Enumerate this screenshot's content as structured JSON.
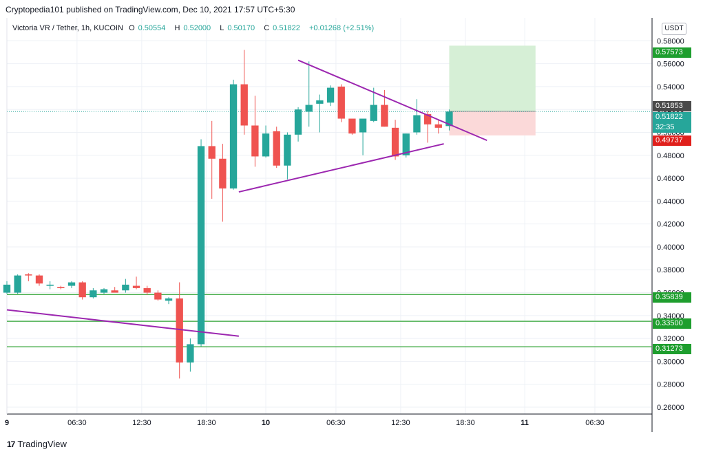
{
  "header": {
    "publisher": "Cryptopedia101",
    "published_on": "published on TradingView.com, Dec 10, 2021 17:57 UTC+5:30"
  },
  "legend": {
    "symbol": "Victoria VR / Tether, 1h, KUCOIN",
    "open_label": "O",
    "open": "0.50554",
    "high_label": "H",
    "high": "0.52000",
    "low_label": "L",
    "low": "0.50170",
    "close_label": "C",
    "close": "0.51822",
    "change": "+0.01268 (+2.51%)"
  },
  "unit": "USDT",
  "price_tags": {
    "target": "0.57573",
    "crosshair": "0.51853",
    "last_price": "0.51822",
    "countdown": "32:35",
    "stop": "0.49737",
    "level_1": "0.35839",
    "level_2": "0.33500",
    "level_3": "0.31273"
  },
  "colors": {
    "bull": "#26a69a",
    "bear": "#ef5350",
    "trendline": "#9c27b0",
    "level": "#4caf50",
    "target_zone": "#d6efd6",
    "stop_zone": "#fbd9d9"
  },
  "chart_data": {
    "type": "candlestick",
    "y_ticks": [
      "0.26000",
      "0.28000",
      "0.30000",
      "0.32000",
      "0.34000",
      "0.36000",
      "0.38000",
      "0.40000",
      "0.42000",
      "0.44000",
      "0.46000",
      "0.48000",
      "0.50000",
      "0.52000",
      "0.54000",
      "0.56000",
      "0.58000"
    ],
    "x_ticks": [
      {
        "label": "9",
        "t": 0
      },
      {
        "label": "06:30",
        "t": 6.5
      },
      {
        "label": "12:30",
        "t": 12.5
      },
      {
        "label": "18:30",
        "t": 18.5
      },
      {
        "label": "10",
        "t": 24
      },
      {
        "label": "06:30",
        "t": 30.5
      },
      {
        "label": "12:30",
        "t": 36.5
      },
      {
        "label": "18:30",
        "t": 42.5
      },
      {
        "label": "11",
        "t": 48
      },
      {
        "label": "06:30",
        "t": 54.5
      }
    ],
    "ylim": [
      0.254,
      0.6
    ],
    "xlim": [
      0,
      59.8
    ],
    "candles": [
      {
        "t": 0,
        "o": 0.36,
        "h": 0.37,
        "l": 0.359,
        "c": 0.367
      },
      {
        "t": 1,
        "o": 0.36,
        "h": 0.376,
        "l": 0.359,
        "c": 0.375
      },
      {
        "t": 2,
        "o": 0.376,
        "h": 0.377,
        "l": 0.37,
        "c": 0.375
      },
      {
        "t": 3,
        "o": 0.375,
        "h": 0.376,
        "l": 0.366,
        "c": 0.368
      },
      {
        "t": 4,
        "o": 0.366,
        "h": 0.37,
        "l": 0.363,
        "c": 0.367
      },
      {
        "t": 5,
        "o": 0.365,
        "h": 0.366,
        "l": 0.363,
        "c": 0.364
      },
      {
        "t": 6,
        "o": 0.366,
        "h": 0.37,
        "l": 0.364,
        "c": 0.369
      },
      {
        "t": 7,
        "o": 0.369,
        "h": 0.37,
        "l": 0.354,
        "c": 0.356
      },
      {
        "t": 8,
        "o": 0.356,
        "h": 0.364,
        "l": 0.355,
        "c": 0.362
      },
      {
        "t": 9,
        "o": 0.36,
        "h": 0.364,
        "l": 0.359,
        "c": 0.363
      },
      {
        "t": 10,
        "o": 0.362,
        "h": 0.365,
        "l": 0.361,
        "c": 0.36
      },
      {
        "t": 11,
        "o": 0.362,
        "h": 0.372,
        "l": 0.36,
        "c": 0.367
      },
      {
        "t": 12,
        "o": 0.366,
        "h": 0.374,
        "l": 0.363,
        "c": 0.364
      },
      {
        "t": 13,
        "o": 0.364,
        "h": 0.366,
        "l": 0.358,
        "c": 0.36
      },
      {
        "t": 14,
        "o": 0.36,
        "h": 0.362,
        "l": 0.353,
        "c": 0.354
      },
      {
        "t": 15,
        "o": 0.353,
        "h": 0.356,
        "l": 0.35,
        "c": 0.355
      },
      {
        "t": 16,
        "o": 0.355,
        "h": 0.369,
        "l": 0.285,
        "c": 0.299
      },
      {
        "t": 17,
        "o": 0.299,
        "h": 0.32,
        "l": 0.291,
        "c": 0.315
      },
      {
        "t": 18,
        "o": 0.315,
        "h": 0.494,
        "l": 0.313,
        "c": 0.488
      },
      {
        "t": 19,
        "o": 0.488,
        "h": 0.51,
        "l": 0.442,
        "c": 0.477
      },
      {
        "t": 20,
        "o": 0.477,
        "h": 0.49,
        "l": 0.422,
        "c": 0.451
      },
      {
        "t": 21,
        "o": 0.451,
        "h": 0.546,
        "l": 0.45,
        "c": 0.542
      },
      {
        "t": 22,
        "o": 0.542,
        "h": 0.572,
        "l": 0.498,
        "c": 0.506
      },
      {
        "t": 23,
        "o": 0.506,
        "h": 0.532,
        "l": 0.47,
        "c": 0.479
      },
      {
        "t": 24,
        "o": 0.479,
        "h": 0.506,
        "l": 0.478,
        "c": 0.499
      },
      {
        "t": 25,
        "o": 0.501,
        "h": 0.505,
        "l": 0.469,
        "c": 0.471
      },
      {
        "t": 26,
        "o": 0.471,
        "h": 0.5,
        "l": 0.459,
        "c": 0.498
      },
      {
        "t": 27,
        "o": 0.498,
        "h": 0.522,
        "l": 0.492,
        "c": 0.52
      },
      {
        "t": 28,
        "o": 0.518,
        "h": 0.562,
        "l": 0.505,
        "c": 0.524
      },
      {
        "t": 29,
        "o": 0.525,
        "h": 0.533,
        "l": 0.5,
        "c": 0.528
      },
      {
        "t": 30,
        "o": 0.526,
        "h": 0.541,
        "l": 0.523,
        "c": 0.539
      },
      {
        "t": 31,
        "o": 0.54,
        "h": 0.542,
        "l": 0.509,
        "c": 0.512
      },
      {
        "t": 32,
        "o": 0.512,
        "h": 0.512,
        "l": 0.498,
        "c": 0.499
      },
      {
        "t": 33,
        "o": 0.5,
        "h": 0.512,
        "l": 0.48,
        "c": 0.512
      },
      {
        "t": 34,
        "o": 0.51,
        "h": 0.539,
        "l": 0.509,
        "c": 0.524
      },
      {
        "t": 35,
        "o": 0.524,
        "h": 0.537,
        "l": 0.505,
        "c": 0.505
      },
      {
        "t": 36,
        "o": 0.504,
        "h": 0.511,
        "l": 0.476,
        "c": 0.479
      },
      {
        "t": 37,
        "o": 0.48,
        "h": 0.499,
        "l": 0.478,
        "c": 0.499
      },
      {
        "t": 38,
        "o": 0.5,
        "h": 0.529,
        "l": 0.498,
        "c": 0.515
      },
      {
        "t": 39,
        "o": 0.516,
        "h": 0.519,
        "l": 0.491,
        "c": 0.507
      },
      {
        "t": 40,
        "o": 0.507,
        "h": 0.511,
        "l": 0.499,
        "c": 0.504
      },
      {
        "t": 41,
        "o": 0.5055,
        "h": 0.52,
        "l": 0.5017,
        "c": 0.5182
      }
    ],
    "trendlines": [
      {
        "name": "upper",
        "t1": 27,
        "p1": 0.563,
        "t2": 44.5,
        "p2": 0.493
      },
      {
        "name": "lower",
        "t1": 21.5,
        "p1": 0.448,
        "t2": 40.5,
        "p2": 0.49
      },
      {
        "name": "old",
        "t1": 0,
        "p1": 0.345,
        "t2": 21.5,
        "p2": 0.322
      }
    ],
    "levels": [
      0.35839,
      0.335,
      0.31273
    ],
    "position": {
      "t1": 41,
      "t2": 49,
      "entry": 0.51853,
      "target": 0.57573,
      "stop": 0.49737
    }
  },
  "footer": {
    "brand": "TradingView"
  }
}
